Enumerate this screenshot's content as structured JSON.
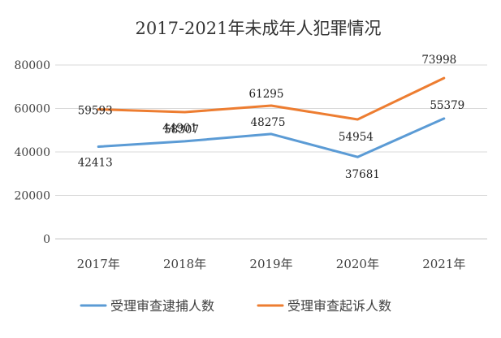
{
  "chart_data": {
    "type": "line",
    "title": "2017-2021年未成年人犯罪情况",
    "categories": [
      "2017年",
      "2018年",
      "2019年",
      "2020年",
      "2021年"
    ],
    "ylim": [
      0,
      80000
    ],
    "yticks": [
      "0",
      "20000",
      "40000",
      "60000",
      "80000"
    ],
    "grid": true,
    "legend_position": "bottom",
    "series": [
      {
        "name": "受理审查逮捕人数",
        "color": "#5B9BD5",
        "values": [
          42413,
          44901,
          48275,
          37681,
          55379
        ]
      },
      {
        "name": "受理审查起诉人数",
        "color": "#ED7D31",
        "values": [
          59593,
          58307,
          61295,
          54954,
          73998
        ]
      }
    ],
    "labels": [
      [
        "42413",
        "44901",
        "48275",
        "37681",
        "55379"
      ],
      [
        "59593",
        "58307",
        "61295",
        "54954",
        "73998"
      ]
    ]
  }
}
